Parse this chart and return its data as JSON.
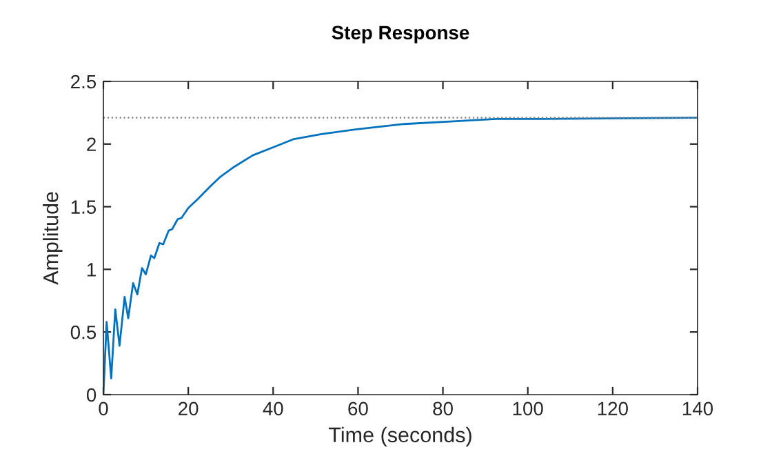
{
  "chart_data": {
    "type": "line",
    "title": "Step Response",
    "xlabel": "Time (seconds)",
    "ylabel": "Amplitude",
    "x": [
      0,
      0.76,
      1.84,
      2.8,
      3.8,
      5.0,
      5.85,
      7.0,
      8.0,
      9.1,
      10.0,
      11.2,
      12.0,
      13.2,
      14.1,
      15.4,
      16.2,
      17.5,
      18.4,
      20.0,
      22.2,
      25.4,
      27.6,
      30.9,
      35.2,
      39.7,
      44.9,
      51.4,
      60.1,
      70.9,
      81.7,
      92.6,
      103.4,
      140
    ],
    "series": [
      {
        "color": "#0072bd",
        "values": [
          0,
          0.58,
          0.13,
          0.68,
          0.39,
          0.78,
          0.61,
          0.89,
          0.8,
          1.01,
          0.96,
          1.11,
          1.09,
          1.21,
          1.2,
          1.31,
          1.32,
          1.4,
          1.41,
          1.49,
          1.56,
          1.67,
          1.74,
          1.82,
          1.91,
          1.97,
          2.04,
          2.08,
          2.12,
          2.16,
          2.18,
          2.2,
          2.2,
          2.21
        ]
      }
    ],
    "xlim": [
      0,
      140
    ],
    "ylim": [
      0,
      2.5
    ],
    "xticks": [
      0,
      20,
      40,
      60,
      80,
      100,
      120,
      140
    ],
    "yticks": [
      0,
      0.5,
      1,
      1.5,
      2,
      2.5
    ],
    "ref_lines": [
      {
        "axis": "y",
        "value": 2.21,
        "color": "#808080",
        "line_style": "dotted"
      }
    ],
    "grid": false,
    "legend": false,
    "marker": "none",
    "line_style": "solid"
  }
}
